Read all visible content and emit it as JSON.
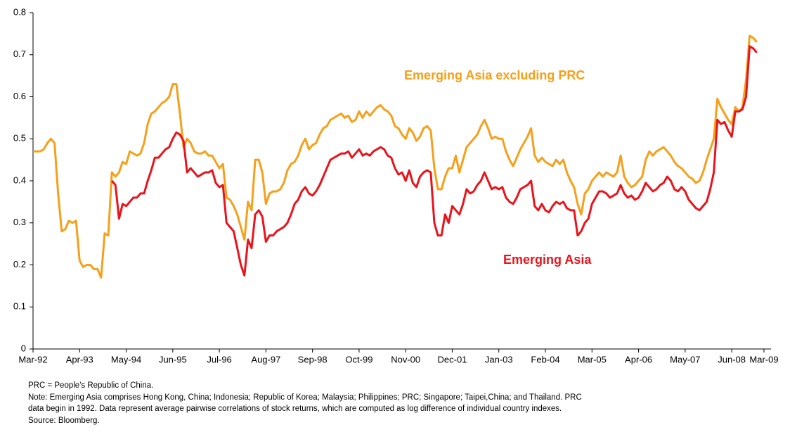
{
  "chart_data": {
    "type": "line",
    "categories": [
      "Mar-92",
      null,
      null,
      null,
      null,
      null,
      null,
      null,
      null,
      null,
      null,
      null,
      null,
      "Apr-93",
      null,
      null,
      null,
      null,
      null,
      null,
      null,
      null,
      null,
      null,
      null,
      null,
      "May-94",
      null,
      null,
      null,
      null,
      null,
      null,
      null,
      null,
      null,
      null,
      null,
      null,
      "Jun-95",
      null,
      null,
      null,
      null,
      null,
      null,
      null,
      null,
      null,
      null,
      null,
      null,
      "Jul-96",
      null,
      null,
      null,
      null,
      null,
      null,
      null,
      null,
      null,
      null,
      null,
      null,
      "Aug-97",
      null,
      null,
      null,
      null,
      null,
      null,
      null,
      null,
      null,
      null,
      null,
      null,
      "Sep-98",
      null,
      null,
      null,
      null,
      null,
      null,
      null,
      null,
      null,
      null,
      null,
      null,
      "Oct-99",
      null,
      null,
      null,
      null,
      null,
      null,
      null,
      null,
      null,
      null,
      null,
      null,
      "Nov-00",
      null,
      null,
      null,
      null,
      null,
      null,
      null,
      null,
      null,
      null,
      null,
      null,
      "Dec-01",
      null,
      null,
      null,
      null,
      null,
      null,
      null,
      null,
      null,
      null,
      null,
      null,
      "Jan-03",
      null,
      null,
      null,
      null,
      null,
      null,
      null,
      null,
      null,
      null,
      null,
      null,
      "Feb-04",
      null,
      null,
      null,
      null,
      null,
      null,
      null,
      null,
      null,
      null,
      null,
      null,
      "Mar-05",
      null,
      null,
      null,
      null,
      null,
      null,
      null,
      null,
      null,
      null,
      null,
      null,
      "Apr-06",
      null,
      null,
      null,
      null,
      null,
      null,
      null,
      null,
      null,
      null,
      null,
      null,
      "May-07",
      null,
      null,
      null,
      null,
      null,
      null,
      null,
      null,
      null,
      null,
      null,
      null,
      "Jun-08",
      null,
      null,
      null,
      null,
      null,
      null,
      null,
      null,
      "Mar-09"
    ],
    "series": [
      {
        "name": "Emerging Asia excluding PRC",
        "color": "#f5a01a",
        "values": [
          0.47,
          0.47,
          0.47,
          0.475,
          0.49,
          0.5,
          0.49,
          0.37,
          0.28,
          0.285,
          0.305,
          0.3,
          0.305,
          0.21,
          0.195,
          0.2,
          0.2,
          0.19,
          0.19,
          0.17,
          0.275,
          0.27,
          0.42,
          0.41,
          0.42,
          0.445,
          0.44,
          0.47,
          0.465,
          0.46,
          0.465,
          0.49,
          0.535,
          0.56,
          0.565,
          0.575,
          0.585,
          0.59,
          0.6,
          0.63,
          0.63,
          0.56,
          0.48,
          0.5,
          0.49,
          0.47,
          0.465,
          0.465,
          0.47,
          0.46,
          0.46,
          0.445,
          0.43,
          0.44,
          0.36,
          0.355,
          0.34,
          0.32,
          0.29,
          0.26,
          0.35,
          0.33,
          0.45,
          0.45,
          0.42,
          0.345,
          0.37,
          0.375,
          0.375,
          0.38,
          0.395,
          0.425,
          0.44,
          0.445,
          0.46,
          0.485,
          0.5,
          0.475,
          0.485,
          0.49,
          0.51,
          0.525,
          0.53,
          0.545,
          0.55,
          0.555,
          0.56,
          0.55,
          0.555,
          0.54,
          0.545,
          0.565,
          0.55,
          0.565,
          0.555,
          0.565,
          0.575,
          0.58,
          0.57,
          0.565,
          0.555,
          0.53,
          0.525,
          0.51,
          0.5,
          0.525,
          0.515,
          0.495,
          0.505,
          0.525,
          0.53,
          0.52,
          0.43,
          0.38,
          0.38,
          0.41,
          0.43,
          0.43,
          0.46,
          0.42,
          0.45,
          0.48,
          0.49,
          0.5,
          0.51,
          0.53,
          0.545,
          0.525,
          0.5,
          0.505,
          0.5,
          0.5,
          0.47,
          0.45,
          0.435,
          0.455,
          0.475,
          0.49,
          0.505,
          0.525,
          0.46,
          0.445,
          0.455,
          0.445,
          0.44,
          0.435,
          0.45,
          0.44,
          0.45,
          0.42,
          0.4,
          0.385,
          0.345,
          0.32,
          0.37,
          0.38,
          0.4,
          0.41,
          0.42,
          0.41,
          0.42,
          0.415,
          0.41,
          0.42,
          0.46,
          0.41,
          0.395,
          0.385,
          0.39,
          0.4,
          0.41,
          0.45,
          0.47,
          0.46,
          0.47,
          0.475,
          0.48,
          0.47,
          0.46,
          0.445,
          0.435,
          0.43,
          0.42,
          0.41,
          0.405,
          0.395,
          0.4,
          0.42,
          0.45,
          0.475,
          0.5,
          0.595,
          0.575,
          0.56,
          0.545,
          0.535,
          0.575,
          0.565,
          0.575,
          0.64,
          0.745,
          0.74,
          0.73,
          null,
          null
        ]
      },
      {
        "name": "Emerging Asia",
        "color": "#e8141c",
        "values": [
          null,
          null,
          null,
          null,
          null,
          null,
          null,
          null,
          null,
          null,
          null,
          null,
          null,
          null,
          null,
          null,
          null,
          null,
          null,
          null,
          null,
          null,
          0.4,
          0.39,
          0.31,
          0.345,
          0.34,
          0.35,
          0.36,
          0.36,
          0.37,
          0.37,
          0.4,
          0.425,
          0.455,
          0.455,
          0.465,
          0.475,
          0.48,
          0.5,
          0.515,
          0.51,
          0.495,
          0.42,
          0.43,
          0.42,
          0.41,
          0.415,
          0.42,
          0.42,
          0.425,
          0.395,
          0.385,
          0.39,
          0.3,
          0.29,
          0.28,
          0.24,
          0.2,
          0.175,
          0.26,
          0.24,
          0.32,
          0.33,
          0.315,
          0.255,
          0.27,
          0.27,
          0.28,
          0.285,
          0.29,
          0.3,
          0.32,
          0.345,
          0.355,
          0.375,
          0.385,
          0.37,
          0.365,
          0.375,
          0.39,
          0.41,
          0.43,
          0.45,
          0.455,
          0.46,
          0.465,
          0.465,
          0.47,
          0.455,
          0.465,
          0.475,
          0.46,
          0.465,
          0.46,
          0.47,
          0.475,
          0.48,
          0.475,
          0.46,
          0.455,
          0.43,
          0.415,
          0.42,
          0.4,
          0.425,
          0.395,
          0.385,
          0.41,
          0.42,
          0.425,
          0.42,
          0.3,
          0.27,
          0.27,
          0.32,
          0.3,
          0.34,
          0.33,
          0.32,
          0.345,
          0.38,
          0.37,
          0.375,
          0.39,
          0.4,
          0.42,
          0.4,
          0.38,
          0.385,
          0.38,
          0.385,
          0.36,
          0.35,
          0.345,
          0.36,
          0.38,
          0.385,
          0.39,
          0.4,
          0.34,
          0.33,
          0.345,
          0.33,
          0.325,
          0.34,
          0.35,
          0.345,
          0.35,
          0.335,
          0.33,
          0.33,
          0.27,
          0.28,
          0.3,
          0.31,
          0.345,
          0.36,
          0.375,
          0.375,
          0.37,
          0.36,
          0.365,
          0.37,
          0.39,
          0.37,
          0.36,
          0.365,
          0.355,
          0.36,
          0.375,
          0.395,
          0.385,
          0.375,
          0.38,
          0.39,
          0.395,
          0.41,
          0.4,
          0.38,
          0.375,
          0.385,
          0.375,
          0.355,
          0.345,
          0.335,
          0.33,
          0.34,
          0.35,
          0.38,
          0.42,
          0.545,
          0.535,
          0.54,
          0.52,
          0.505,
          0.565,
          0.565,
          0.57,
          0.6,
          0.72,
          0.715,
          0.705,
          null,
          null
        ]
      }
    ],
    "ylim": [
      0,
      0.8
    ],
    "yticks": [
      0,
      0.1,
      0.2,
      0.3,
      0.4,
      0.5,
      0.6,
      0.7,
      0.8
    ],
    "notes": [
      "PRC = People's Republic of China.",
      "Note: Emerging Asia comprises Hong Kong, China; Indonesia; Republic of Korea; Malaysia; Philippines; PRC; Singapore; Taipei,China; and Thailand. PRC",
      "data begin in 1992. Data represent average pairwise correlations of stock returns, which are computed as log difference of individual country indexes.",
      "Source: Bloomberg."
    ]
  }
}
